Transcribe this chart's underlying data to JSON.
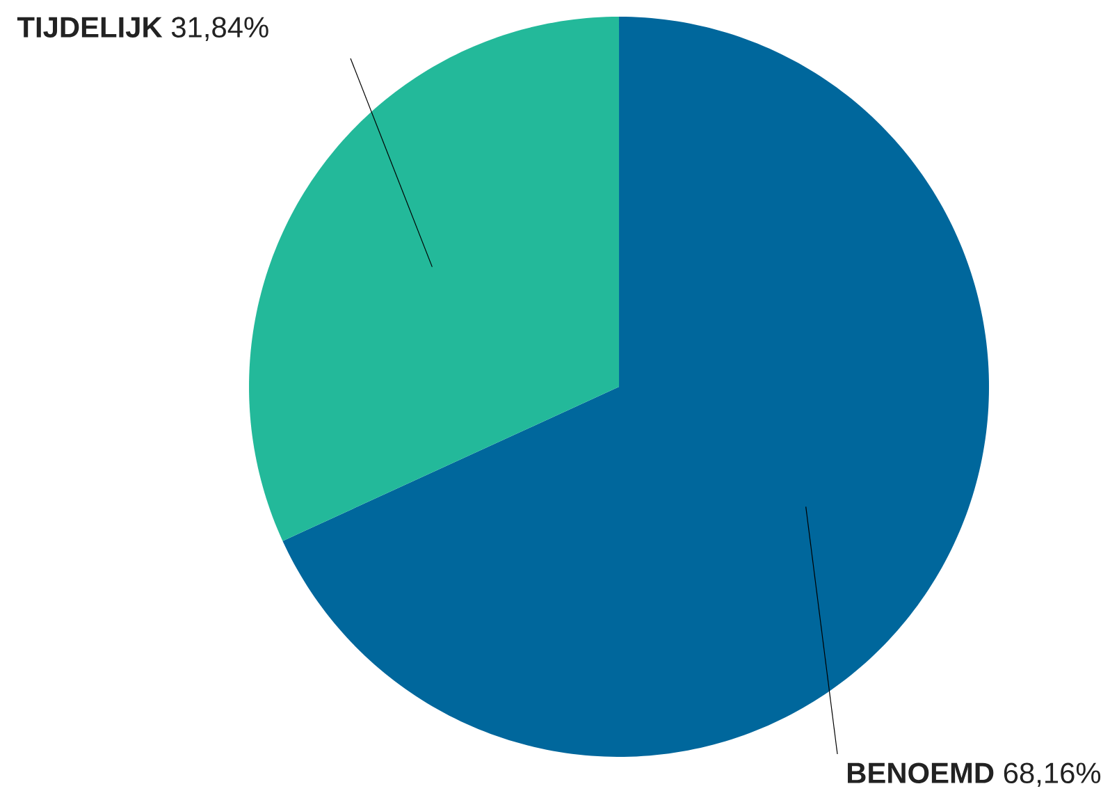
{
  "chart_data": {
    "type": "pie",
    "categories": [
      "BENOEMD",
      "TIJDELIJK"
    ],
    "values": [
      68.16,
      31.84
    ],
    "value_labels": [
      "68,16%",
      "31,84%"
    ],
    "colors": [
      "#00679c",
      "#23b99a"
    ]
  }
}
